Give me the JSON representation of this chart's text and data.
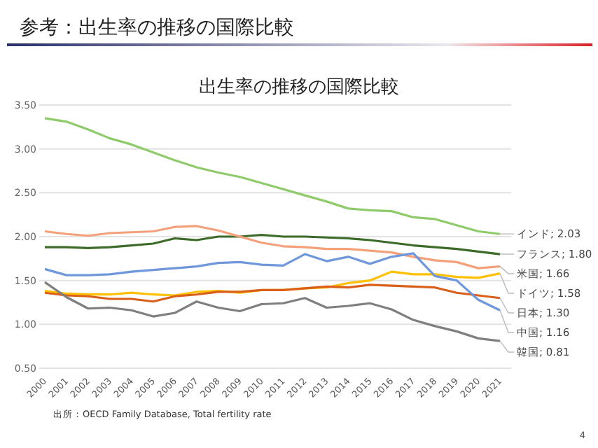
{
  "chart_data": {
    "type": "line",
    "title": "参考：出生率の推移の国際比較",
    "subtitle": "出生率の推移の国際比較",
    "categories": [
      "2000",
      "2001",
      "2002",
      "2003",
      "2004",
      "2005",
      "2006",
      "2007",
      "2008",
      "2009",
      "2010",
      "2011",
      "2012",
      "2013",
      "2014",
      "2015",
      "2016",
      "2017",
      "2018",
      "2019",
      "2020",
      "2021"
    ],
    "ylim": [
      0.5,
      3.5
    ],
    "yticks": [
      {
        "value": 0.5,
        "label": "0.50"
      },
      {
        "value": 1,
        "label": "1.00"
      },
      {
        "value": 1.5,
        "label": "1.50"
      },
      {
        "value": 2,
        "label": "2.00"
      },
      {
        "value": 2.5,
        "label": "2.50"
      },
      {
        "value": 3,
        "label": "3.00"
      },
      {
        "value": 3.5,
        "label": "3.50"
      }
    ],
    "grid": "y",
    "series": [
      {
        "name": "インド; 2.03",
        "color": "#8fcb6a",
        "values": [
          3.35,
          3.31,
          3.22,
          3.12,
          3.05,
          2.96,
          2.87,
          2.79,
          2.73,
          2.68,
          2.61,
          2.54,
          2.47,
          2.4,
          2.32,
          2.3,
          2.29,
          2.22,
          2.2,
          2.13,
          2.06,
          2.03
        ]
      },
      {
        "name": "フランス; 1.80",
        "color": "#3d6b2a",
        "values": [
          1.88,
          1.88,
          1.87,
          1.88,
          1.9,
          1.92,
          1.98,
          1.96,
          2.0,
          2.0,
          2.02,
          2.0,
          2.0,
          1.99,
          1.98,
          1.96,
          1.93,
          1.9,
          1.88,
          1.86,
          1.83,
          1.8
        ]
      },
      {
        "name": "米国; 1.66",
        "color": "#f4a07a",
        "values": [
          2.06,
          2.03,
          2.01,
          2.04,
          2.05,
          2.06,
          2.11,
          2.12,
          2.07,
          2.0,
          1.93,
          1.89,
          1.88,
          1.86,
          1.86,
          1.84,
          1.82,
          1.77,
          1.73,
          1.71,
          1.64,
          1.66
        ]
      },
      {
        "name": "ドイツ; 1.58",
        "color": "#ffc000",
        "values": [
          1.38,
          1.35,
          1.34,
          1.34,
          1.36,
          1.34,
          1.33,
          1.37,
          1.38,
          1.36,
          1.39,
          1.39,
          1.41,
          1.42,
          1.47,
          1.5,
          1.6,
          1.57,
          1.57,
          1.54,
          1.53,
          1.58
        ]
      },
      {
        "name": "日本; 1.30",
        "color": "#d9601a",
        "values": [
          1.36,
          1.33,
          1.32,
          1.29,
          1.29,
          1.26,
          1.32,
          1.34,
          1.37,
          1.37,
          1.39,
          1.39,
          1.41,
          1.43,
          1.42,
          1.45,
          1.44,
          1.43,
          1.42,
          1.36,
          1.33,
          1.3
        ]
      },
      {
        "name": "中国; 1.16",
        "color": "#6f97dc",
        "values": [
          1.63,
          1.56,
          1.56,
          1.57,
          1.6,
          1.62,
          1.64,
          1.66,
          1.7,
          1.71,
          1.68,
          1.67,
          1.8,
          1.72,
          1.77,
          1.69,
          1.77,
          1.81,
          1.55,
          1.5,
          1.28,
          1.16
        ]
      },
      {
        "name": "韓国; 0.81",
        "color": "#7f7f7f",
        "values": [
          1.48,
          1.31,
          1.18,
          1.19,
          1.16,
          1.09,
          1.13,
          1.26,
          1.19,
          1.15,
          1.23,
          1.24,
          1.3,
          1.19,
          1.21,
          1.24,
          1.17,
          1.05,
          0.98,
          0.92,
          0.84,
          0.81
        ]
      }
    ],
    "annotations": [
      "出所：OECD Family Database, Total fertility rate",
      "4"
    ]
  }
}
